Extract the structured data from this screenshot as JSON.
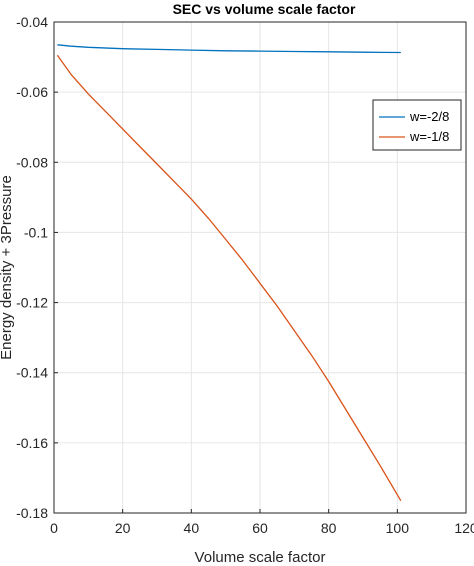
{
  "chart_data": {
    "type": "line",
    "title": "SEC vs volume scale factor",
    "xlabel": "Volume scale factor",
    "ylabel": "Energy density + 3Pressure",
    "xlim": [
      0,
      120
    ],
    "ylim": [
      -0.18,
      -0.04
    ],
    "xticks": [
      0,
      20,
      40,
      60,
      80,
      100,
      120
    ],
    "xtick_labels": [
      "0",
      "20",
      "40",
      "60",
      "80",
      "100",
      "120"
    ],
    "yticks": [
      -0.18,
      -0.16,
      -0.14,
      -0.12,
      -0.1,
      -0.08,
      -0.06,
      -0.04
    ],
    "ytick_labels": [
      "-0.18",
      "-0.16",
      "-0.14",
      "-0.12",
      "-0.1",
      "-0.08",
      "-0.06",
      "-0.04"
    ],
    "grid": true,
    "legend_position": "top-right",
    "series": [
      {
        "name": "w=-2/8",
        "color": "#0072BD",
        "x": [
          1,
          5,
          10,
          20,
          30,
          40,
          50,
          60,
          70,
          80,
          90,
          101
        ],
        "y": [
          -0.0465,
          -0.0469,
          -0.0472,
          -0.0476,
          -0.0478,
          -0.048,
          -0.0482,
          -0.0483,
          -0.0484,
          -0.0485,
          -0.0486,
          -0.0487
        ]
      },
      {
        "name": "w=-1/8",
        "color": "#D95319",
        "x": [
          1,
          5,
          10,
          15,
          20,
          25,
          30,
          35,
          40,
          45,
          50,
          55,
          60,
          65,
          70,
          75,
          80,
          85,
          90,
          95,
          101
        ],
        "y": [
          -0.0495,
          -0.055,
          -0.0605,
          -0.0655,
          -0.0705,
          -0.0755,
          -0.0805,
          -0.0855,
          -0.0905,
          -0.096,
          -0.102,
          -0.108,
          -0.1145,
          -0.121,
          -0.128,
          -0.135,
          -0.1425,
          -0.1505,
          -0.1585,
          -0.1665,
          -0.1765
        ]
      }
    ]
  }
}
